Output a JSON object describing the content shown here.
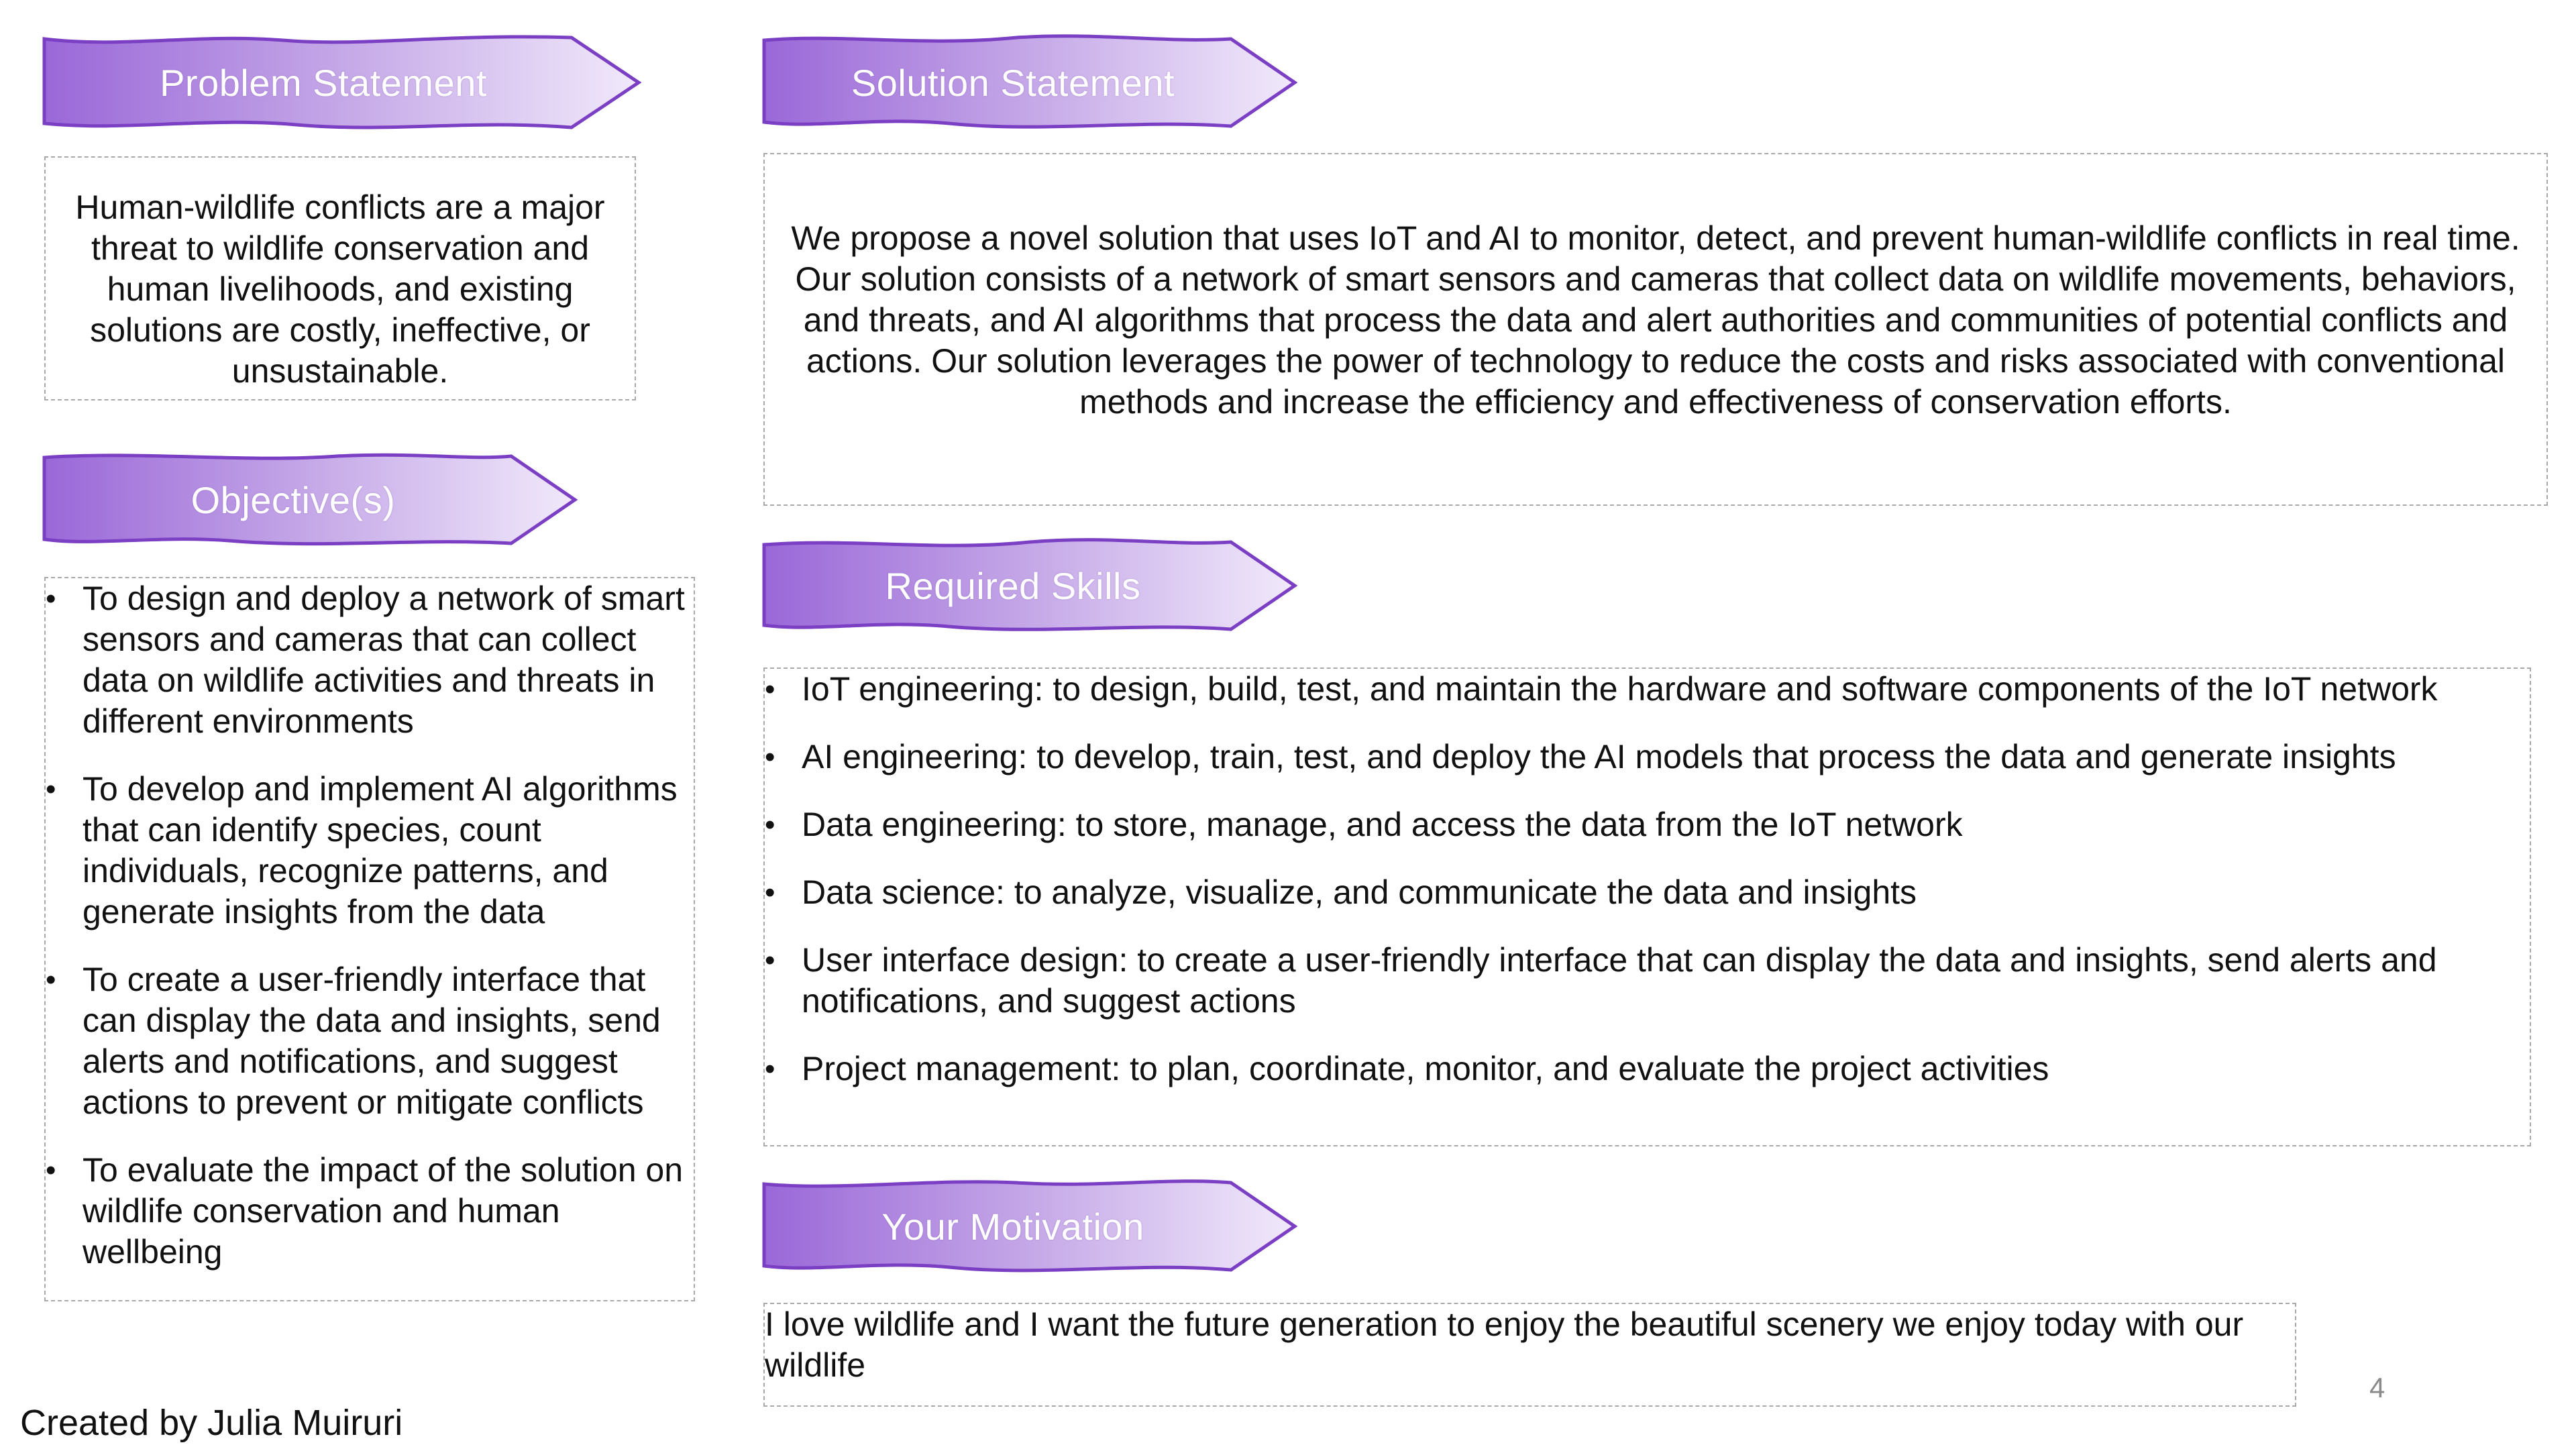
{
  "colors": {
    "banner_dark": "#9a68d8",
    "banner_light": "#efe6fa",
    "banner_border": "#7b3fc4",
    "box_border": "#a8a8a8"
  },
  "problem": {
    "title": "Problem Statement",
    "text": "Human-wildlife conflicts are a major threat to wildlife conservation and human livelihoods, and existing solutions are costly, ineffective, or unsustainable."
  },
  "objectives": {
    "title": "Objective(s)",
    "items": [
      "To design and deploy a network of smart sensors and cameras that can collect data on wildlife activities and threats in different environments",
      "To develop and implement AI algorithms that can identify species, count individuals, recognize patterns, and generate insights from the data",
      "To create a user-friendly interface that can display the data and insights, send alerts and notifications, and suggest actions to prevent or mitigate conflicts",
      "To evaluate the impact of the solution on wildlife conservation and human wellbeing"
    ]
  },
  "solution": {
    "title": "Solution Statement",
    "text": "We propose a novel solution that uses IoT and AI to monitor, detect, and prevent human-wildlife conflicts in real time. Our solution consists of a network of smart sensors and cameras that collect data on wildlife movements, behaviors, and threats, and AI algorithms that process the data and alert authorities and communities of potential conflicts and actions. Our solution leverages the power of technology to reduce the costs and risks associated with conventional methods and increase the efficiency and effectiveness of conservation efforts."
  },
  "skills": {
    "title": "Required Skills",
    "items": [
      "IoT engineering: to design, build, test, and maintain the hardware and software components of the IoT network",
      "AI engineering: to develop, train, test, and deploy the AI models that process the data and generate insights",
      "Data engineering: to store, manage, and access the data from the IoT network",
      "Data science: to analyze, visualize, and communicate the data and insights",
      "User interface design: to create a user-friendly interface that can display the data and insights, send alerts and notifications, and suggest actions",
      "Project management: to plan, coordinate, monitor, and evaluate the project activities"
    ]
  },
  "motivation": {
    "title": "Your Motivation",
    "text": "I love wildlife and I want the future generation to enjoy the beautiful scenery we enjoy today with our wildlife"
  },
  "footer": {
    "credit": "Created by Julia Muiruri",
    "page_number": "4"
  },
  "bullet_glyph": "•"
}
